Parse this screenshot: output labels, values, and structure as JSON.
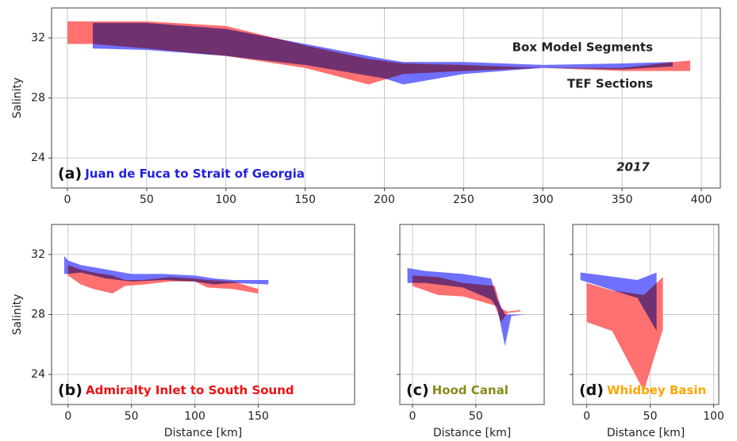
{
  "chart_data": [
    {
      "type": "band",
      "ylabel": "Salinity",
      "label": "(a)",
      "region": "Juan de Fuca to Strait of Georgia",
      "region_color": "#2222dd",
      "year": "2017",
      "xlim": [
        -10,
        412
      ],
      "ylim": [
        22,
        34
      ],
      "xticks": [
        0,
        50,
        100,
        150,
        200,
        250,
        300,
        350,
        400
      ],
      "yticks": [
        24,
        28,
        32
      ],
      "ytick_labels": true,
      "grid": true,
      "series": [
        {
          "name": "Box Model Segments",
          "color": "#7070ff",
          "x": [
            16,
            50,
            100,
            150,
            200,
            212,
            250,
            300,
            350,
            382
          ],
          "upper": [
            33.0,
            33.0,
            32.6,
            31.6,
            30.6,
            30.4,
            30.4,
            30.2,
            30.3,
            30.4
          ],
          "lower": [
            31.3,
            31.2,
            30.8,
            30.2,
            29.3,
            28.9,
            29.6,
            30.0,
            29.9,
            30.1
          ]
        },
        {
          "name": "TEF Sections",
          "color": "#ff7070",
          "x": [
            0,
            16,
            50,
            100,
            150,
            190,
            212,
            250,
            300,
            350,
            383,
            393
          ],
          "upper": [
            33.1,
            33.1,
            33.1,
            32.8,
            31.5,
            30.6,
            30.3,
            30.2,
            30.0,
            30.0,
            30.4,
            30.5
          ],
          "lower": [
            31.6,
            31.6,
            31.3,
            30.8,
            30.0,
            28.9,
            29.6,
            29.8,
            30.0,
            29.8,
            29.8,
            29.8
          ]
        }
      ]
    },
    {
      "type": "band",
      "ylabel": "Salinity",
      "xlabel": "Distance [km]",
      "label": "(b)",
      "region": "Admiralty Inlet to South Sound",
      "region_color": "#ee1111",
      "xlim": [
        -13,
        226
      ],
      "ylim": [
        22,
        34
      ],
      "xticks": [
        0,
        50,
        100,
        150
      ],
      "yticks": [
        24,
        28,
        32
      ],
      "ytick_labels": true,
      "grid": true,
      "series": [
        {
          "color": "#7070ff",
          "x": [
            -3,
            0,
            10,
            30,
            50,
            75,
            100,
            115,
            130,
            158
          ],
          "upper": [
            31.9,
            31.6,
            31.3,
            31.0,
            30.7,
            30.7,
            30.6,
            30.4,
            30.3,
            30.3
          ],
          "lower": [
            30.7,
            30.7,
            30.8,
            30.4,
            30.2,
            30.3,
            30.2,
            30.0,
            30.1,
            30.0
          ]
        },
        {
          "color": "#ff7070",
          "x": [
            0,
            10,
            20,
            35,
            45,
            60,
            80,
            100,
            110,
            130,
            150
          ],
          "upper": [
            31.3,
            31.0,
            30.8,
            30.6,
            30.3,
            30.3,
            30.5,
            30.4,
            30.3,
            30.2,
            29.7
          ],
          "lower": [
            30.6,
            30.0,
            29.7,
            29.4,
            29.9,
            30.0,
            30.2,
            30.2,
            29.8,
            29.7,
            29.4
          ]
        }
      ]
    },
    {
      "type": "band",
      "xlabel": "Distance [km]",
      "label": "(c)",
      "region": "Hood Canal",
      "region_color": "#8a8a1a",
      "xlim": [
        -10,
        104
      ],
      "ylim": [
        22,
        34
      ],
      "xticks": [
        0,
        50
      ],
      "yticks": [
        24,
        28,
        32
      ],
      "ytick_labels": false,
      "grid": true,
      "series": [
        {
          "color": "#7070ff",
          "x": [
            -4,
            10,
            40,
            62,
            67,
            73,
            78,
            90
          ],
          "upper": [
            31.1,
            30.9,
            30.7,
            30.4,
            29.0,
            28.0,
            28.0,
            28.0
          ],
          "lower": [
            30.1,
            30.1,
            29.8,
            29.0,
            28.4,
            25.9,
            27.9,
            28.0
          ]
        },
        {
          "color": "#ff7070",
          "x": [
            0,
            20,
            40,
            65,
            70,
            75,
            85
          ],
          "upper": [
            30.6,
            30.5,
            30.1,
            29.9,
            28.4,
            28.2,
            28.3
          ],
          "lower": [
            29.9,
            29.3,
            29.2,
            28.6,
            27.5,
            28.1,
            28.2
          ]
        }
      ]
    },
    {
      "type": "band",
      "xlabel": "Distance [km]",
      "label": "(d)",
      "region": "Whidbey Basin",
      "region_color": "#ffa500",
      "xlim": [
        -11,
        104
      ],
      "ylim": [
        22,
        34
      ],
      "xticks": [
        0,
        50,
        100
      ],
      "yticks": [
        24,
        28,
        32
      ],
      "ytick_labels": false,
      "grid": true,
      "series": [
        {
          "color": "#7070ff",
          "x": [
            -5,
            40,
            55
          ],
          "upper": [
            30.8,
            30.3,
            30.8
          ],
          "lower": [
            30.3,
            29.1,
            26.9
          ]
        },
        {
          "color": "#ff7070",
          "x": [
            0,
            20,
            45,
            60
          ],
          "upper": [
            30.1,
            29.6,
            29.3,
            30.5
          ],
          "lower": [
            27.5,
            26.9,
            22.9,
            27.0
          ]
        }
      ]
    }
  ]
}
